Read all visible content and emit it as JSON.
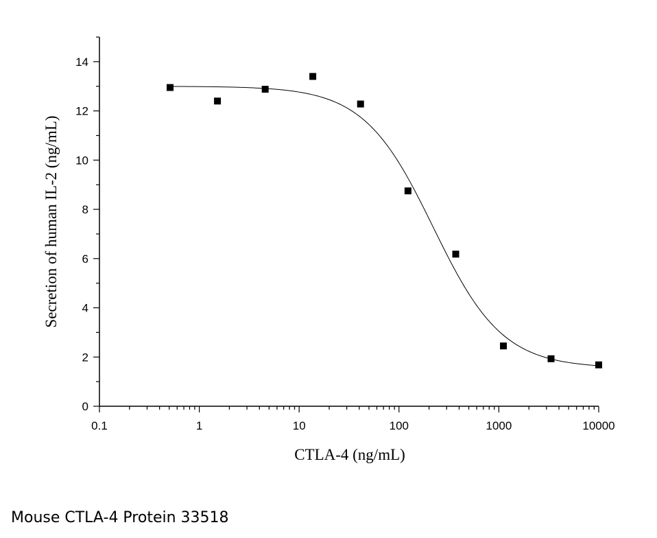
{
  "caption": "Mouse CTLA-4 Protein 33518",
  "chart_data": {
    "type": "scatter",
    "title": "",
    "xlabel": "CTLA-4 (ng/mL)",
    "ylabel": "Secretion of human IL-2 (ng/mL)",
    "x_scale": "log",
    "xlim": [
      0.1,
      10000
    ],
    "ylim": [
      0,
      15
    ],
    "x_ticks": [
      "0.1",
      "1",
      "10",
      "100",
      "1000",
      "10000"
    ],
    "y_ticks": [
      "0",
      "2",
      "4",
      "6",
      "8",
      "10",
      "12",
      "14"
    ],
    "series": [
      {
        "marker": "square",
        "x": [
          0.51,
          1.52,
          4.57,
          13.7,
          41.2,
          123,
          370,
          1111,
          3333,
          10000
        ],
        "y": [
          12.95,
          12.4,
          12.88,
          13.4,
          12.28,
          8.75,
          6.18,
          2.45,
          1.93,
          1.68
        ]
      }
    ],
    "fit_curve": {
      "model": "4PL",
      "top": 13.0,
      "bottom": 1.55,
      "ec50": 220,
      "hill": 1.25
    },
    "grid": false,
    "legend": "none"
  }
}
